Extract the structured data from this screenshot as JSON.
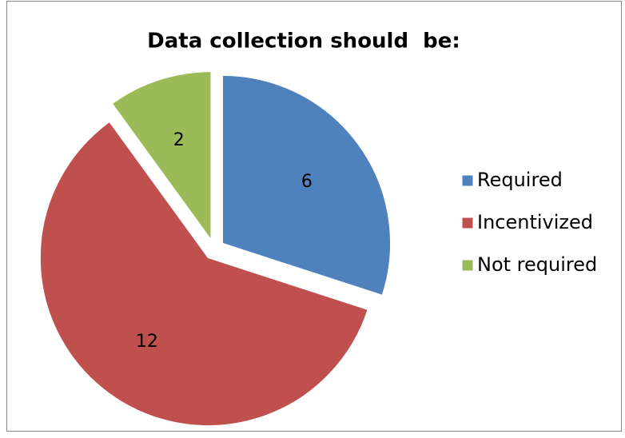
{
  "chart_data": {
    "type": "pie",
    "title": "Data collection should  be:",
    "categories": [
      "Required",
      "Incentivized",
      "Not required"
    ],
    "values": [
      6,
      12,
      2
    ],
    "colors": [
      "#4f81bd",
      "#c0504d",
      "#9bbb59"
    ]
  }
}
